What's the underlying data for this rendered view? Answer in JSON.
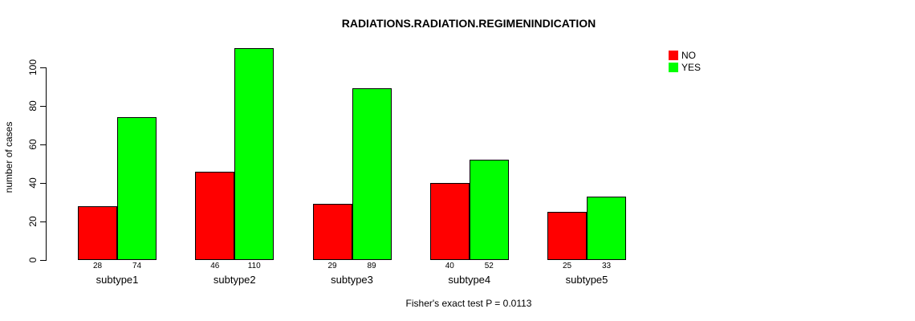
{
  "chart_data": {
    "type": "bar",
    "title": "RADIATIONS.RADIATION.REGIMENINDICATION",
    "categories": [
      "subtype1",
      "subtype2",
      "subtype3",
      "subtype4",
      "subtype5"
    ],
    "series": [
      {
        "name": "NO",
        "color": "#ff0000",
        "values": [
          28,
          46,
          29,
          40,
          25
        ]
      },
      {
        "name": "YES",
        "color": "#00ff00",
        "values": [
          74,
          110,
          89,
          52,
          33
        ]
      }
    ],
    "xlabel": "",
    "ylabel": "number of cases",
    "ylim": [
      0,
      110
    ],
    "yticks": [
      0,
      20,
      40,
      60,
      80,
      100
    ],
    "grid": false,
    "bar_labels_shown": true,
    "legend_position": "top-right",
    "annotation": "Fisher's exact test P = 0.0113"
  }
}
